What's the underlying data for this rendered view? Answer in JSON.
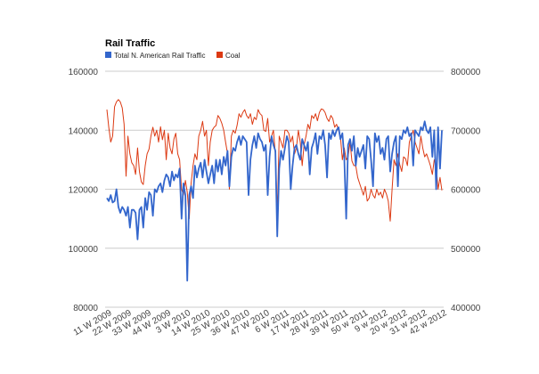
{
  "chart_data": {
    "type": "line",
    "title": "Rail Traffic",
    "legend_position": "top-left",
    "grid": true,
    "left_axis": {
      "ylim": [
        80000,
        160000
      ],
      "ticks": [
        "80000",
        "100000",
        "120000",
        "140000",
        "160000"
      ]
    },
    "right_axis": {
      "ylim": [
        400000,
        800000
      ],
      "ticks": [
        "400000",
        "500000",
        "600000",
        "700000",
        "800000"
      ]
    },
    "x_tick_labels": [
      "11 W 2009",
      "22 W 2009",
      "33 W 2009",
      "44 W 2009",
      "3 W 2010",
      "14 W 2010",
      "25 W 2010",
      "36 W 2010",
      "47 W 2010",
      "6 W 2011",
      "17 W 2011",
      "28 W 2011",
      "39 W 2011",
      "50 w 2011",
      "9 w 2012",
      "20 w 2012",
      "31 w 2012",
      "42 w 2012"
    ],
    "series": [
      {
        "name": "Total N. American Rail Traffic",
        "color": "#3366cc",
        "axis": "left",
        "values": [
          117000,
          116000,
          118000,
          115500,
          116000,
          120000,
          114000,
          112000,
          114000,
          113000,
          111000,
          114000,
          107000,
          113000,
          113000,
          112000,
          103000,
          113000,
          114000,
          107000,
          117000,
          113000,
          119000,
          118000,
          111000,
          120000,
          119000,
          121000,
          122000,
          119000,
          123000,
          125000,
          124000,
          121000,
          126000,
          123000,
          125000,
          124000,
          127000,
          110000,
          122000,
          118000,
          89000,
          118000,
          121000,
          117000,
          128000,
          124000,
          127000,
          129000,
          124000,
          130000,
          126000,
          122000,
          125000,
          128000,
          122000,
          130000,
          126000,
          130000,
          125000,
          131000,
          128000,
          133000,
          121000,
          131000,
          134000,
          133000,
          136000,
          138000,
          135000,
          138000,
          137000,
          136000,
          118000,
          130000,
          135000,
          138000,
          134000,
          139000,
          137000,
          136000,
          133000,
          135000,
          118000,
          131000,
          138000,
          135000,
          133000,
          104000,
          127000,
          133000,
          130000,
          134000,
          138000,
          136000,
          120000,
          128000,
          134000,
          135000,
          132000,
          130000,
          137000,
          135000,
          133000,
          136000,
          125000,
          134000,
          136000,
          139000,
          132000,
          138000,
          137000,
          140000,
          135000,
          124000,
          139000,
          137000,
          140000,
          138000,
          140000,
          141000,
          137000,
          139000,
          131000,
          110000,
          135000,
          137000,
          133000,
          138000,
          128000,
          134000,
          131000,
          133000,
          135000,
          127000,
          138000,
          137000,
          130000,
          121000,
          139000,
          136000,
          138000,
          132000,
          134000,
          130000,
          137000,
          138000,
          126000,
          132000,
          136000,
          138000,
          121000,
          138000,
          137000,
          140000,
          139000,
          141000,
          138000,
          139000,
          128000,
          140000,
          139000,
          138000,
          141000,
          140000,
          143000,
          140000,
          139000,
          141000,
          131000,
          140000,
          120000,
          141000,
          127000,
          140000
        ]
      },
      {
        "name": "Coal",
        "color": "#dc3912",
        "axis": "right",
        "values": [
          735000,
          705000,
          680000,
          690000,
          740000,
          748000,
          752000,
          748000,
          738000,
          710000,
          622000,
          690000,
          660000,
          645000,
          640000,
          625000,
          670000,
          630000,
          612000,
          608000,
          640000,
          660000,
          668000,
          690000,
          705000,
          690000,
          700000,
          680000,
          706000,
          684000,
          700000,
          650000,
          695000,
          670000,
          660000,
          685000,
          695000,
          660000,
          650000,
          600000,
          590000,
          615000,
          595000,
          550000,
          610000,
          640000,
          660000,
          650000,
          690000,
          700000,
          715000,
          690000,
          700000,
          640000,
          680000,
          700000,
          705000,
          708000,
          725000,
          720000,
          712000,
          700000,
          680000,
          660000,
          600000,
          690000,
          700000,
          695000,
          708000,
          728000,
          722000,
          730000,
          735000,
          725000,
          720000,
          728000,
          710000,
          722000,
          718000,
          735000,
          728000,
          725000,
          700000,
          698000,
          720000,
          680000,
          690000,
          700000,
          660000,
          560000,
          690000,
          680000,
          670000,
          700000,
          700000,
          695000,
          680000,
          690000,
          660000,
          670000,
          700000,
          680000,
          640000,
          675000,
          690000,
          710000,
          702000,
          725000,
          720000,
          728000,
          716000,
          730000,
          736000,
          735000,
          730000,
          720000,
          715000,
          725000,
          720000,
          705000,
          710000,
          700000,
          690000,
          650000,
          670000,
          650000,
          655000,
          680000,
          648000,
          640000,
          640000,
          620000,
          610000,
          600000,
          590000,
          605000,
          580000,
          585000,
          600000,
          590000,
          585000,
          600000,
          590000,
          595000,
          585000,
          600000,
          592000,
          580000,
          546000,
          600000,
          650000,
          640000,
          660000,
          642000,
          630000,
          655000,
          652000,
          640000,
          680000,
          690000,
          700000,
          680000,
          670000,
          660000,
          690000,
          670000,
          655000,
          660000,
          650000,
          640000,
          625000,
          650000,
          640000,
          600000,
          620000,
          598000
        ]
      }
    ]
  }
}
